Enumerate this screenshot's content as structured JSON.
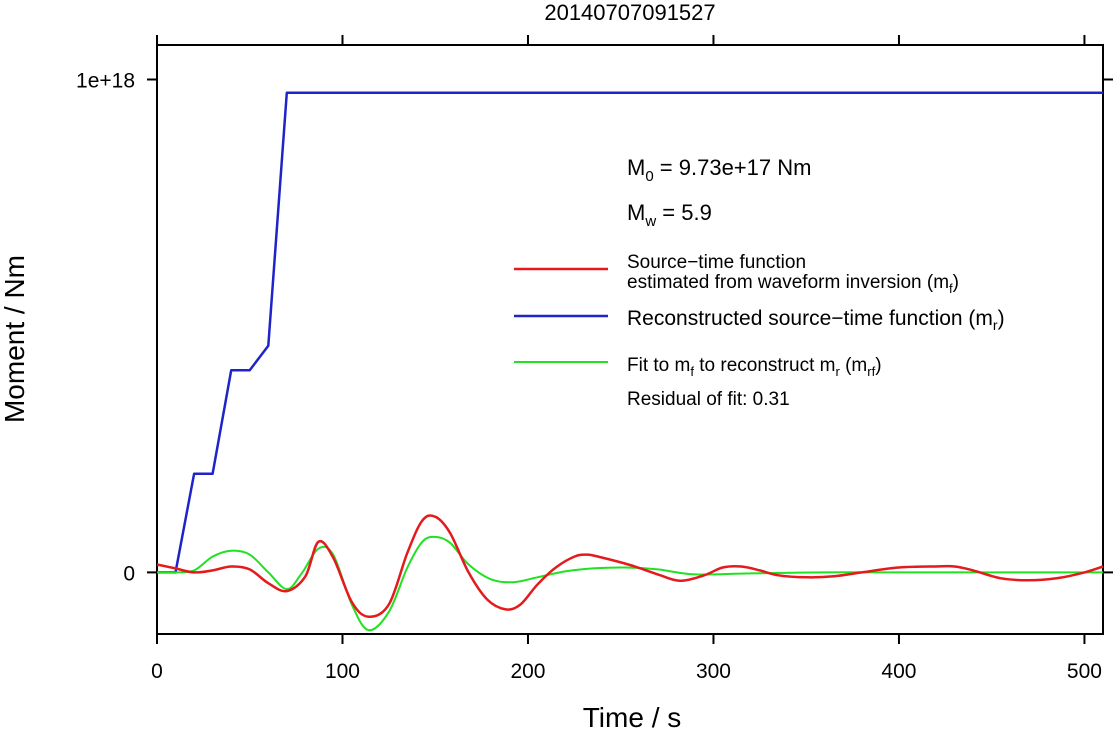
{
  "chart_data": {
    "type": "line",
    "title": "20140707091527",
    "xlabel": "Time / s",
    "ylabel": "Moment / Nm",
    "xlim": [
      0,
      510
    ],
    "ylim": [
      -1.25e+17,
      1.07e+18
    ],
    "x_ticks": [
      {
        "v": 0,
        "label": "0"
      },
      {
        "v": 100,
        "label": "100"
      },
      {
        "v": 200,
        "label": "200"
      },
      {
        "v": 300,
        "label": "300"
      },
      {
        "v": 400,
        "label": "400"
      },
      {
        "v": 500,
        "label": "500"
      }
    ],
    "y_ticks": [
      {
        "v": 0,
        "label": "0"
      },
      {
        "v": 1e+18,
        "label": "1e+18"
      }
    ],
    "grid": false,
    "legend_placement": "upper-right",
    "annotations": {
      "m0_label": "M",
      "m0_sub": "0",
      "m0_rest": " = 9.73e+17 Nm",
      "mw_label": "M",
      "mw_sub": "w",
      "mw_rest": " = 5.9",
      "residual": "Residual of fit: 0.31"
    },
    "legend": [
      {
        "key": "mf",
        "color": "#e41a1c",
        "line1": "Source−time function",
        "line2": "estimated from waveform inversion (m",
        "sub": "f",
        "tail": ")"
      },
      {
        "key": "mr",
        "color": "#1f24c8",
        "line1": "Reconstructed source−time function (m",
        "sub": "r",
        "tail": ")"
      },
      {
        "key": "mrf",
        "color": "#22e022",
        "parts": [
          "Fit to m",
          "f",
          " to reconstruct m",
          "r",
          " (m",
          "rf",
          ")"
        ]
      }
    ],
    "series": [
      {
        "key": "mr",
        "color": "#1f24c8",
        "x": [
          0,
          10,
          20,
          30,
          40,
          50,
          60,
          70,
          510
        ],
        "y": [
          0,
          0,
          2e+17,
          2e+17,
          4.1e+17,
          4.1e+17,
          4.6e+17,
          9.73e+17,
          9.73e+17
        ]
      },
      {
        "key": "mf",
        "color": "#e41a1c",
        "x": [
          0,
          10,
          20,
          30,
          40,
          50,
          60,
          70,
          80,
          87,
          95,
          105,
          114,
          125,
          135,
          143,
          150,
          158,
          168,
          178,
          188,
          196,
          205,
          215,
          225,
          232,
          240,
          255,
          270,
          282,
          295,
          305,
          315,
          325,
          335,
          350,
          365,
          380,
          400,
          420,
          430,
          440,
          455,
          470,
          485,
          500,
          510
        ],
        "y": [
          1.6e+16,
          8000000000000000.0,
          0,
          4000000000000000.0,
          1.2e+16,
          6000000000000000.0,
          -2.2e+16,
          -3.8e+16,
          -8000000000000000.0,
          6.2e+16,
          3e+16,
          -6e+16,
          -9e+16,
          -6.5e+16,
          4e+16,
          1.05e+17,
          1.13e+17,
          8e+16,
          0,
          -5.5e+16,
          -7.5e+16,
          -6.5e+16,
          -2.5e+16,
          1e+16,
          3.2e+16,
          3.6e+16,
          3e+16,
          1.5e+16,
          -4000000000000000.0,
          -1.7e+16,
          -6000000000000000.0,
          1e+16,
          1.2e+16,
          4000000000000000.0,
          -6000000000000000.0,
          -1e+16,
          -8000000000000000.0,
          0,
          1e+16,
          1.2e+16,
          1.2e+16,
          4000000000000000.0,
          -1.2e+16,
          -1.6e+16,
          -1.2e+16,
          0,
          1.2e+16
        ]
      },
      {
        "key": "mrf",
        "color": "#22e022",
        "x": [
          0,
          10,
          20,
          30,
          40,
          50,
          60,
          70,
          78,
          87,
          95,
          105,
          114,
          125,
          135,
          143,
          150,
          158,
          168,
          180,
          192,
          205,
          220,
          235,
          252,
          270,
          290,
          320,
          360,
          400,
          450,
          510
        ],
        "y": [
          0,
          0,
          4000000000000000.0,
          3.2e+16,
          4.4e+16,
          3.6e+16,
          0,
          -3.4e+16,
          -2000000000000000.0,
          4.8e+16,
          3.6e+16,
          -6.5e+16,
          -1.17e+17,
          -8e+16,
          1e+16,
          6.2e+16,
          7.2e+16,
          6e+16,
          1.6e+16,
          -1.4e+16,
          -2e+16,
          -1e+16,
          2000000000000000.0,
          8000000000000000.0,
          1e+16,
          6000000000000000.0,
          -4000000000000000.0,
          -2000000000000000.0,
          0,
          0,
          0,
          0
        ]
      }
    ]
  }
}
